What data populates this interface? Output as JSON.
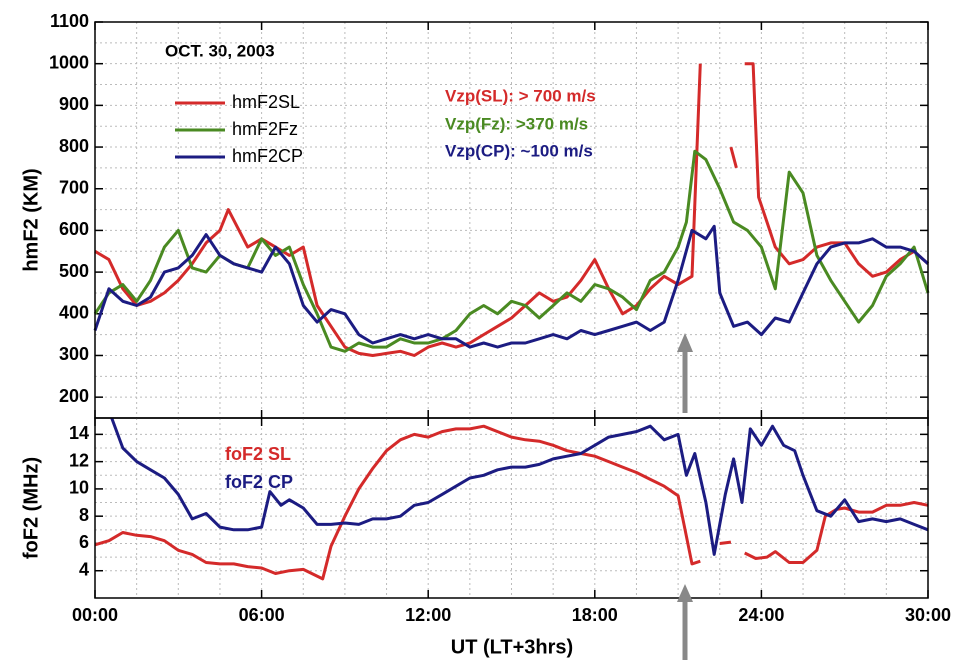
{
  "chart_data": [
    {
      "type": "line",
      "title": "OCT. 30, 2003",
      "y_label": "hmF2 (KM)",
      "xlim": [
        0,
        30
      ],
      "xticks": [
        0,
        6,
        12,
        18,
        24,
        30
      ],
      "xminorticks": [
        1.5,
        3,
        4.5,
        7.5,
        9,
        10.5,
        13.5,
        15,
        16.5,
        19.5,
        21,
        22.5,
        25.5,
        27,
        28.5
      ],
      "ylim": [
        150,
        1100
      ],
      "yticks": [
        200,
        300,
        400,
        500,
        600,
        700,
        800,
        900,
        1000,
        1100
      ],
      "yminorticks": [
        250,
        350,
        450,
        550,
        650,
        750,
        850,
        950,
        1050
      ],
      "grid": true,
      "legend": "upper left",
      "legend_style": "line",
      "annotations": [
        {
          "text": "Vzp(SL):  > 700 m/s",
          "color": "#d42a2a"
        },
        {
          "text": "Vzp(Fz):  >370 m/s",
          "color": "#4a8a22"
        },
        {
          "text": "Vzp(CP): ~100 m/s",
          "color": "#1c1c82"
        }
      ],
      "series": [
        {
          "name": "hmF2SL",
          "color": "#d42a2a",
          "x": [
            0,
            0.5,
            1,
            1.5,
            2,
            2.5,
            3,
            3.5,
            4,
            4.5,
            4.8,
            5.5,
            6,
            6.5,
            7,
            7.5,
            8,
            8.5,
            9,
            9.5,
            10,
            10.5,
            11,
            11.5,
            12,
            12.5,
            13,
            13.5,
            14,
            14.5,
            15,
            15.5,
            16,
            16.5,
            17,
            17.5,
            18,
            18.5,
            19,
            19.5,
            20,
            20.5,
            21,
            21.5,
            21.8,
            null,
            22.9,
            23.1,
            null,
            23.4,
            23.7,
            23.9,
            24.2,
            24.5,
            25,
            25.5,
            26,
            26.5,
            27,
            27.5,
            28,
            28.5,
            29,
            29.5,
            30
          ],
          "values": [
            550,
            530,
            460,
            420,
            430,
            450,
            480,
            520,
            570,
            600,
            650,
            560,
            580,
            560,
            540,
            560,
            420,
            370,
            320,
            305,
            300,
            305,
            310,
            300,
            320,
            330,
            320,
            330,
            350,
            370,
            390,
            420,
            450,
            430,
            440,
            480,
            530,
            460,
            400,
            420,
            460,
            490,
            470,
            490,
            1000,
            null,
            800,
            750,
            null,
            1000,
            1000,
            680,
            620,
            560,
            520,
            530,
            560,
            570,
            570,
            520,
            490,
            500,
            530,
            550,
            520
          ]
        },
        {
          "name": "hmF2Fz",
          "color": "#4a8a22",
          "x": [
            0,
            0.5,
            1,
            1.5,
            2,
            2.5,
            3,
            3.5,
            4,
            4.5,
            5,
            5.5,
            6,
            6.5,
            7,
            7.5,
            8,
            8.5,
            9,
            9.5,
            10,
            10.5,
            11,
            11.5,
            12,
            12.5,
            13,
            13.5,
            14,
            14.5,
            15,
            15.5,
            16,
            16.5,
            17,
            17.5,
            18,
            18.5,
            19,
            19.5,
            20,
            20.5,
            21,
            21.3,
            21.6,
            22,
            22.5,
            23,
            23.5,
            24,
            24.5,
            25,
            25.5,
            26,
            26.5,
            27,
            27.5,
            28,
            28.5,
            29,
            29.5,
            30
          ],
          "values": [
            400,
            450,
            470,
            430,
            480,
            560,
            600,
            510,
            500,
            540,
            520,
            510,
            580,
            540,
            560,
            470,
            400,
            320,
            310,
            330,
            320,
            320,
            340,
            330,
            330,
            340,
            360,
            400,
            420,
            400,
            430,
            420,
            390,
            420,
            450,
            430,
            470,
            460,
            440,
            410,
            480,
            500,
            560,
            620,
            790,
            770,
            700,
            620,
            600,
            560,
            460,
            740,
            690,
            540,
            480,
            430,
            380,
            420,
            490,
            520,
            560,
            450
          ]
        },
        {
          "name": "hmF2CP",
          "color": "#1c1c82",
          "x": [
            0,
            0.5,
            1,
            1.5,
            2,
            2.5,
            3,
            3.5,
            4,
            4.5,
            5,
            5.5,
            6,
            6.5,
            7,
            7.5,
            8,
            8.5,
            9,
            9.5,
            10,
            10.5,
            11,
            11.5,
            12,
            12.5,
            13,
            13.5,
            14,
            14.5,
            15,
            15.5,
            16,
            16.5,
            17,
            17.5,
            18,
            18.5,
            19,
            19.5,
            20,
            20.5,
            21,
            21.5,
            22,
            22.3,
            22.5,
            23,
            23.5,
            24,
            24.5,
            25,
            25.5,
            26,
            26.5,
            27,
            27.5,
            28,
            28.5,
            29,
            29.5,
            30
          ],
          "values": [
            360,
            460,
            430,
            420,
            440,
            500,
            510,
            540,
            590,
            540,
            520,
            510,
            500,
            560,
            520,
            420,
            380,
            410,
            400,
            350,
            330,
            340,
            350,
            340,
            350,
            340,
            340,
            320,
            330,
            320,
            330,
            330,
            340,
            350,
            340,
            360,
            350,
            360,
            370,
            380,
            360,
            380,
            480,
            600,
            580,
            610,
            450,
            370,
            380,
            350,
            390,
            380,
            450,
            520,
            560,
            570,
            570,
            580,
            560,
            560,
            550,
            520
          ]
        }
      ]
    },
    {
      "type": "line",
      "y_label": "foF2 (MHz)",
      "x_label": "UT (LT+3hrs)",
      "xlim": [
        0,
        30
      ],
      "xticks": [
        {
          "value": 0,
          "label": "00:00"
        },
        {
          "value": 6,
          "label": "06:00"
        },
        {
          "value": 12,
          "label": "12:00"
        },
        {
          "value": 18,
          "label": "18:00"
        },
        {
          "value": 24,
          "label": "24:00"
        },
        {
          "value": 30,
          "label": "30:00"
        }
      ],
      "xminorticks": [
        1.5,
        3,
        4.5,
        7.5,
        9,
        10.5,
        13.5,
        15,
        16.5,
        19.5,
        21,
        22.5,
        25.5,
        27,
        28.5
      ],
      "ylim": [
        2,
        15.2
      ],
      "yticks": [
        4,
        6,
        8,
        10,
        12,
        14
      ],
      "yminorticks": [
        5,
        7,
        9,
        11,
        13
      ],
      "grid": true,
      "legend": "upper left",
      "legend_style": "text",
      "series": [
        {
          "name": "foF2 SL",
          "color": "#d42a2a",
          "x": [
            0,
            0.5,
            1,
            1.5,
            2,
            2.5,
            3,
            3.5,
            4,
            4.5,
            5,
            5.5,
            6,
            6.5,
            7,
            7.5,
            8.2,
            8.5,
            9,
            9.5,
            10,
            10.5,
            11,
            11.5,
            12,
            12.5,
            13,
            13.5,
            14,
            14.5,
            15,
            15.5,
            16,
            16.5,
            17,
            17.5,
            18,
            18.5,
            19,
            19.5,
            20,
            20.5,
            21,
            21.2,
            21.5,
            21.8,
            null,
            22.5,
            22.9,
            null,
            23.4,
            23.8,
            24.2,
            24.5,
            25,
            25.5,
            26,
            26.3,
            26.7,
            27,
            27.5,
            28,
            28.5,
            29,
            29.5,
            30
          ],
          "values": [
            5.9,
            6.2,
            6.8,
            6.6,
            6.5,
            6.2,
            5.5,
            5.2,
            4.6,
            4.5,
            4.5,
            4.3,
            4.2,
            3.8,
            4.0,
            4.1,
            3.4,
            5.8,
            8,
            10,
            11.5,
            12.8,
            13.6,
            14,
            13.8,
            14.2,
            14.4,
            14.4,
            14.6,
            14.2,
            13.8,
            13.6,
            13.5,
            13.2,
            12.8,
            12.6,
            12.4,
            12.0,
            11.6,
            11.2,
            10.7,
            10.2,
            9.5,
            7.5,
            4.5,
            4.7,
            null,
            6.0,
            6.1,
            null,
            5.3,
            4.9,
            5.0,
            5.4,
            4.6,
            4.6,
            5.5,
            8.0,
            8.5,
            8.6,
            8.3,
            8.3,
            8.8,
            8.8,
            9.0,
            8.8
          ]
        },
        {
          "name": "foF2 CP",
          "color": "#1c1c82",
          "x": [
            0.6,
            1,
            1.5,
            2,
            2.5,
            3,
            3.5,
            4,
            4.5,
            5,
            5.5,
            6,
            6.3,
            6.7,
            7,
            7.5,
            8,
            8.5,
            9,
            9.5,
            10,
            10.5,
            11,
            11.5,
            12,
            12.5,
            13,
            13.5,
            14,
            14.5,
            15,
            15.5,
            16,
            16.5,
            17,
            17.5,
            18,
            18.5,
            19,
            19.5,
            20,
            20.5,
            21,
            21.3,
            21.6,
            22,
            22.3,
            22.7,
            23,
            23.3,
            23.6,
            24,
            24.4,
            24.8,
            25.2,
            25.5,
            26,
            26.5,
            27,
            27.5,
            28,
            28.5,
            29,
            29.5,
            30
          ],
          "values": [
            15.2,
            13,
            12.0,
            11.4,
            10.8,
            9.6,
            7.8,
            8.2,
            7.2,
            7.0,
            7.0,
            7.2,
            9.8,
            8.8,
            9.2,
            8.6,
            7.4,
            7.4,
            7.5,
            7.4,
            7.8,
            7.8,
            8.0,
            8.8,
            9,
            9.6,
            10.2,
            10.8,
            11.0,
            11.4,
            11.6,
            11.6,
            11.8,
            12.2,
            12.4,
            12.6,
            13.2,
            13.8,
            14.0,
            14.2,
            14.6,
            13.6,
            14.0,
            11.0,
            12.6,
            9.0,
            5.2,
            9.6,
            12.2,
            9,
            14.4,
            13.2,
            14.6,
            13.2,
            12.8,
            11.0,
            8.4,
            8.0,
            9.2,
            7.6,
            7.8,
            7.6,
            7.8,
            7.4,
            7.0
          ]
        }
      ]
    }
  ]
}
